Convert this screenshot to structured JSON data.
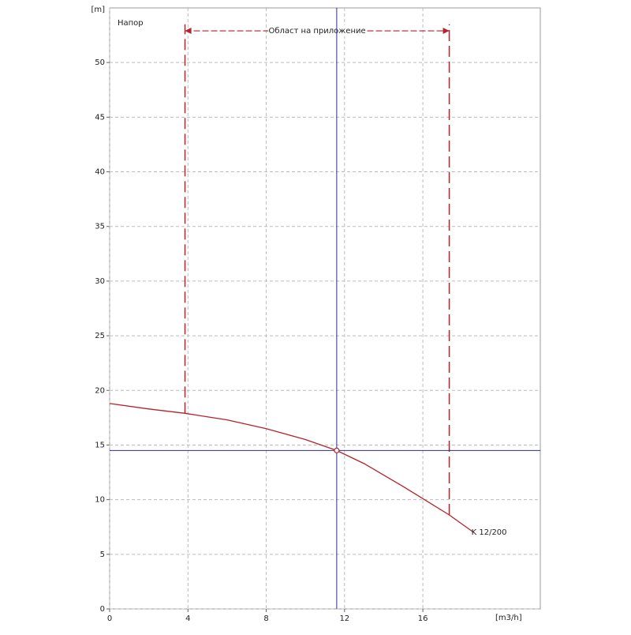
{
  "chart_data": {
    "type": "line",
    "title": "Напор",
    "y_label": "[m]",
    "x_label": "[m3/h]",
    "x": [
      0,
      2,
      3.85,
      6,
      8,
      10,
      11.6,
      13,
      15,
      17.35,
      18.6
    ],
    "series": [
      {
        "name": "K 12/200",
        "color": "#b5222a",
        "values": [
          18.8,
          18.3,
          17.9,
          17.3,
          16.5,
          15.5,
          14.5,
          13.3,
          11.2,
          8.6,
          7.0
        ]
      }
    ],
    "xlim": [
      0,
      22
    ],
    "ylim": [
      0,
      55
    ],
    "xticks": [
      0,
      4,
      8,
      12,
      16
    ],
    "yticks": [
      0,
      5,
      10,
      15,
      20,
      25,
      30,
      35,
      40,
      45,
      50
    ],
    "grid": true,
    "operating_point": {
      "x": 11.6,
      "y": 14.5,
      "color": "#2b2b9a"
    },
    "application_range": {
      "label": "Област на приложение",
      "x": [
        3.85,
        17.35
      ],
      "bottom": [
        17.9,
        8.6
      ],
      "top": 53.5,
      "arrow_y": 52.9,
      "color": "#b5222a"
    }
  }
}
